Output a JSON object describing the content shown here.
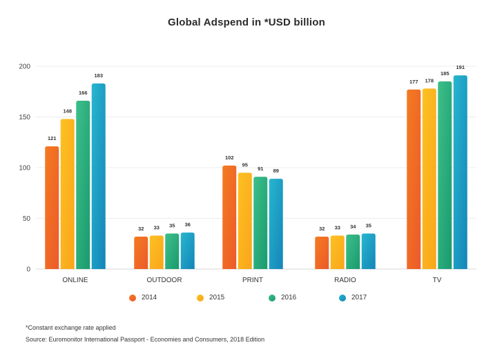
{
  "chart_data": {
    "type": "bar",
    "title": "Global Adspend in *USD billion",
    "categories": [
      "ONLINE",
      "OUTDOOR",
      "PRINT",
      "RADIO",
      "TV"
    ],
    "series": [
      {
        "name": "2014",
        "values": [
          121,
          32,
          102,
          32,
          177
        ]
      },
      {
        "name": "2015",
        "values": [
          148,
          33,
          95,
          33,
          178
        ]
      },
      {
        "name": "2016",
        "values": [
          166,
          35,
          91,
          34,
          185
        ]
      },
      {
        "name": "2017",
        "values": [
          183,
          36,
          89,
          35,
          191
        ]
      }
    ],
    "yticks": [
      0,
      50,
      100,
      150,
      200
    ],
    "ylim": [
      0,
      200
    ],
    "grid": true,
    "legend_position": "bottom",
    "colors": {
      "2014": [
        "#f47b20",
        "#ec5a2b"
      ],
      "2015": [
        "#fdc122",
        "#f9a51b"
      ],
      "2016": [
        "#3dbf8a",
        "#1a9a6e"
      ],
      "2017": [
        "#27b6cf",
        "#1485b8"
      ]
    }
  },
  "footnotes": [
    "*Constant exchange rate applied",
    "Source: Euromonitor International Passport - Economies and Consumers, 2018 Edition"
  ]
}
